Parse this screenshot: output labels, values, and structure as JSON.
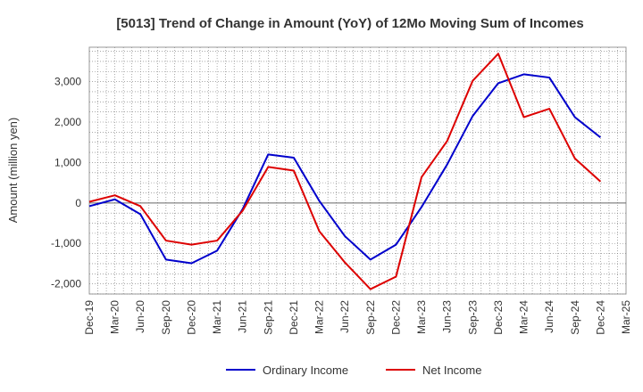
{
  "chart_data": {
    "type": "line",
    "title": "[5013]  Trend of Change in Amount (YoY) of 12Mo Moving Sum of Incomes",
    "xlabel": "",
    "ylabel": "Amount (million yen)",
    "categories": [
      "Dec-19",
      "Mar-20",
      "Jun-20",
      "Sep-20",
      "Dec-20",
      "Mar-21",
      "Jun-21",
      "Sep-21",
      "Dec-21",
      "Mar-22",
      "Jun-22",
      "Sep-22",
      "Dec-22",
      "Mar-23",
      "Jun-23",
      "Sep-23",
      "Dec-23",
      "Mar-24",
      "Jun-24",
      "Sep-24",
      "Dec-24",
      "Mar-25"
    ],
    "ylim": [
      -2250,
      3850
    ],
    "yticks": [
      -2000,
      -1000,
      0,
      1000,
      2000,
      3000
    ],
    "ytick_labels": [
      "-2,000",
      "-1,000",
      "0",
      "1,000",
      "2,000",
      "3,000"
    ],
    "grid": true,
    "legend_position": "bottom",
    "series": [
      {
        "name": "Ordinary Income",
        "color": "#0000cc",
        "values": [
          -80,
          90,
          -280,
          -1400,
          -1490,
          -1180,
          -150,
          1200,
          1120,
          50,
          -820,
          -1400,
          -1030,
          -100,
          950,
          2150,
          2960,
          3180,
          3100,
          2120,
          1620,
          null
        ]
      },
      {
        "name": "Net Income",
        "color": "#dd0000",
        "values": [
          30,
          190,
          -80,
          -930,
          -1030,
          -930,
          -190,
          890,
          800,
          -700,
          -1470,
          -2130,
          -1820,
          640,
          1530,
          3020,
          3690,
          2120,
          2330,
          1100,
          530,
          null
        ]
      }
    ]
  }
}
